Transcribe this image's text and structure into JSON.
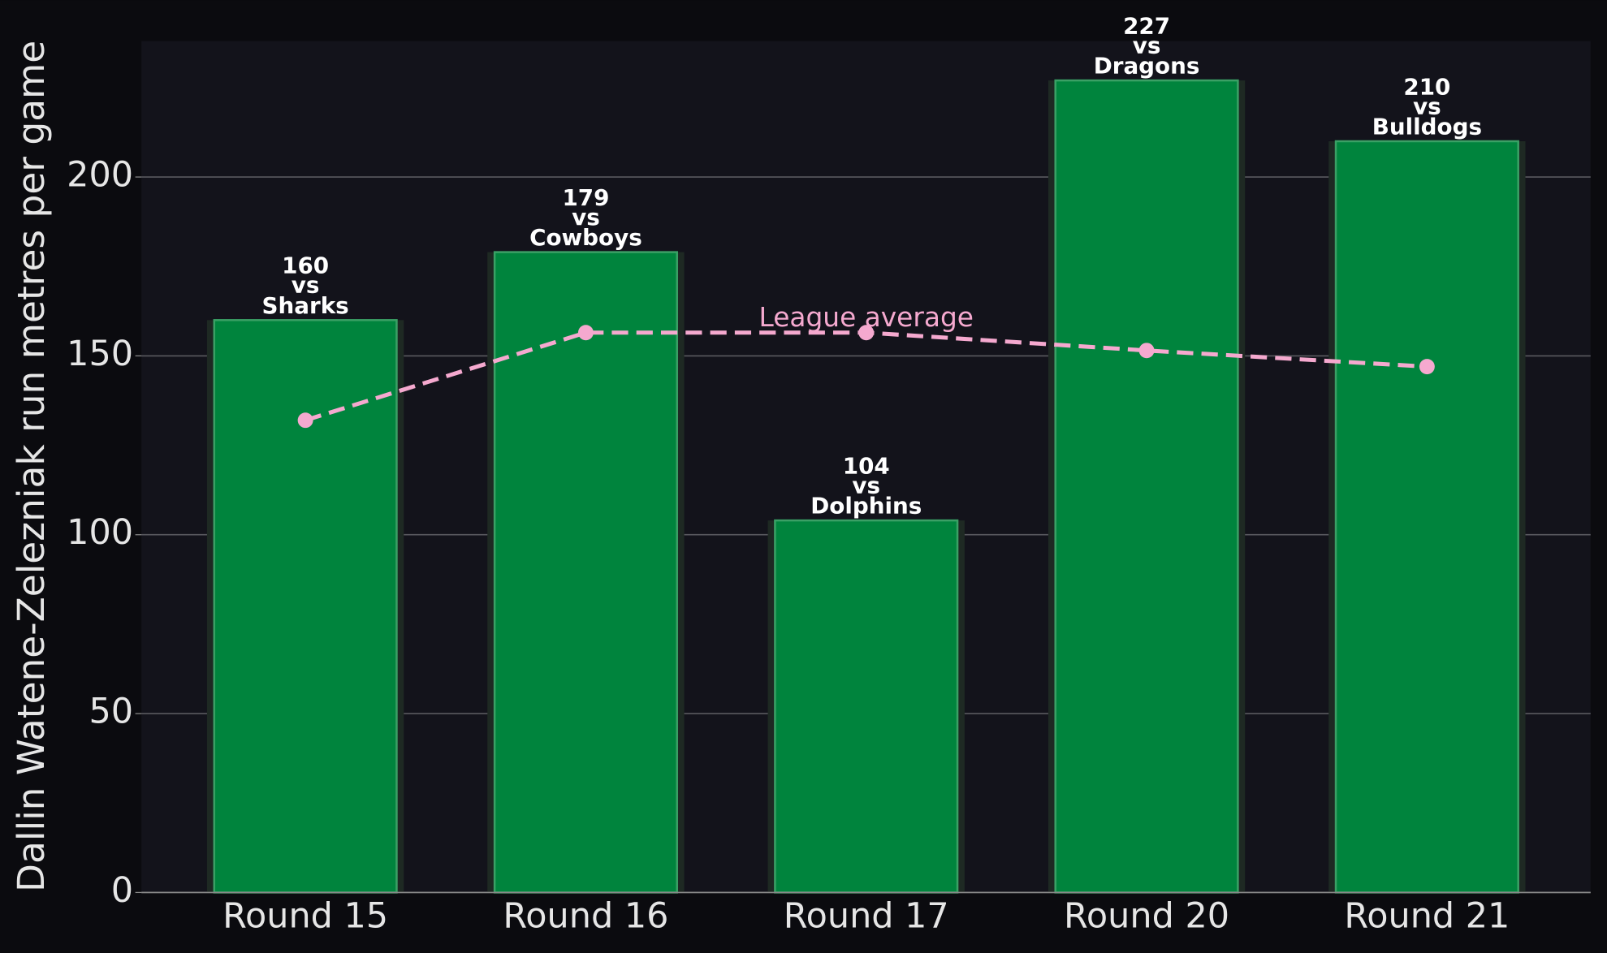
{
  "chart_data": {
    "type": "bar",
    "y_label": "Dallin Watene-Zelezniak run metres per game",
    "categories": [
      "Round 15",
      "Round 16",
      "Round 17",
      "Round 20",
      "Round 21"
    ],
    "series": [
      {
        "color": "#00843d",
        "values": [
          160,
          179,
          104,
          227,
          210
        ],
        "opponents": [
          "Sharks",
          "Cowboys",
          "Dolphins",
          "Dragons",
          "Bulldogs"
        ]
      },
      {
        "name": "League average",
        "type": "line",
        "color": "#f5a9cf",
        "values": [
          132,
          156.5,
          156.5,
          151.5,
          147
        ]
      }
    ],
    "vs_label": "vs",
    "ylim": [
      0,
      238
    ],
    "yticks": [
      0,
      50,
      100,
      150,
      200
    ],
    "grid": true
  }
}
